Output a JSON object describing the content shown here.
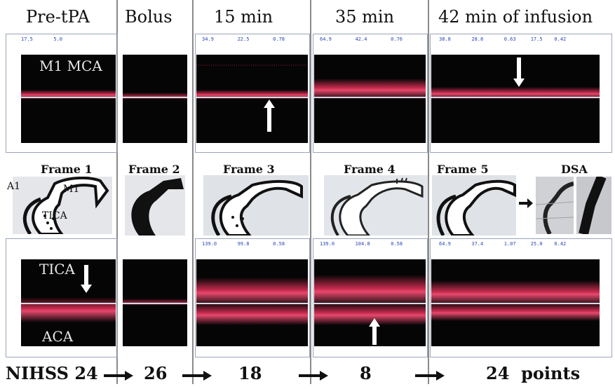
{
  "headers": [
    "Pre-tPA",
    "Bolus",
    "15 min",
    "35 min",
    "42 min of infusion"
  ],
  "top_trace_label": "M1 MCA",
  "frames": [
    "Frame 1",
    "Frame 2",
    "Frame 3",
    "Frame 4",
    "Frame 5"
  ],
  "dsa_label": "DSA",
  "vessels": {
    "a1": "A1",
    "m1": "M1",
    "tica": "TICA"
  },
  "bottom_trace_labels": {
    "tica": "TICA",
    "aca": "ACA"
  },
  "readouts": {
    "top": [
      {
        "a": "17.5",
        "b": "5.0",
        "c": ""
      },
      {
        "a": "34.9",
        "b": "22.5",
        "c": "0.78"
      },
      {
        "a": "64.9",
        "b": "42.4",
        "c": "0.76"
      },
      {
        "a": "38.8",
        "b": "28.8",
        "c": "0.63",
        "d": "17.5",
        "e": "0.42"
      }
    ],
    "bottom": [
      {
        "a": "139.0",
        "b": "99.8",
        "c": "0.58"
      },
      {
        "a": "139.0",
        "b": "104.8",
        "c": "0.58"
      },
      {
        "a": "64.9",
        "b": "37.4",
        "c": "1.07",
        "d": "25.0",
        "e": "0.42"
      }
    ]
  },
  "nihss": {
    "label": "NIHSS",
    "scores": [
      "24",
      "26",
      "18",
      "8",
      "24"
    ],
    "suffix": "points"
  },
  "colors": {
    "signal": "#e8385a",
    "trace_bg": "#050505",
    "readout": "#2a46b5"
  }
}
